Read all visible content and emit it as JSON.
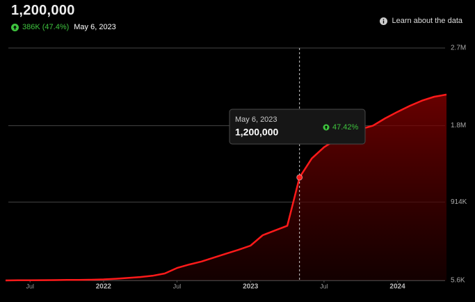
{
  "header": {
    "value": "1,200,000",
    "change": "386K (47.4%)",
    "date": "May 6, 2023",
    "link": "Learn about the data"
  },
  "chart_data": {
    "type": "area",
    "color": "#ff1a1a",
    "grid": true,
    "x": [
      "2021-05",
      "2021-06",
      "2021-07",
      "2021-08",
      "2021-09",
      "2021-10",
      "2021-11",
      "2021-12",
      "2022-01",
      "2022-02",
      "2022-03",
      "2022-04",
      "2022-05",
      "2022-06",
      "2022-07",
      "2022-08",
      "2022-09",
      "2022-10",
      "2022-11",
      "2022-12",
      "2023-01",
      "2023-02",
      "2023-03",
      "2023-04",
      "2023-05",
      "2023-06",
      "2023-07",
      "2023-08",
      "2023-09",
      "2023-10",
      "2023-11",
      "2023-12",
      "2024-01",
      "2024-02",
      "2024-03",
      "2024-04",
      "2024-05"
    ],
    "values": [
      6000,
      7000,
      8000,
      9000,
      10000,
      11000,
      12000,
      14000,
      18000,
      25000,
      35000,
      45000,
      60000,
      86000,
      150000,
      190000,
      225000,
      270000,
      315000,
      360000,
      409000,
      530000,
      585000,
      640000,
      1200000,
      1420000,
      1550000,
      1640000,
      1700000,
      1760000,
      1800000,
      1885000,
      1960000,
      2030000,
      2090000,
      2135000,
      2160000
    ],
    "xlim": [
      "2021-05",
      "2024-05"
    ],
    "xticks": [
      {
        "value": "2021-07",
        "label": "Jul"
      },
      {
        "value": "2022-01",
        "label": "2022"
      },
      {
        "value": "2022-07",
        "label": "Jul"
      },
      {
        "value": "2023-01",
        "label": "2023"
      },
      {
        "value": "2023-07",
        "label": "Jul"
      },
      {
        "value": "2024-01",
        "label": "2024"
      }
    ],
    "ylim": [
      5600,
      2700000
    ],
    "yticks": [
      {
        "value": 5600,
        "label": "5.6K"
      },
      {
        "value": 914000,
        "label": "914K"
      },
      {
        "value": 1800000,
        "label": "1.8M"
      },
      {
        "value": 2700000,
        "label": "2.7M"
      }
    ],
    "tooltip": {
      "date": "May 6, 2023",
      "value": "1,200,000",
      "change": "47.42%"
    }
  }
}
